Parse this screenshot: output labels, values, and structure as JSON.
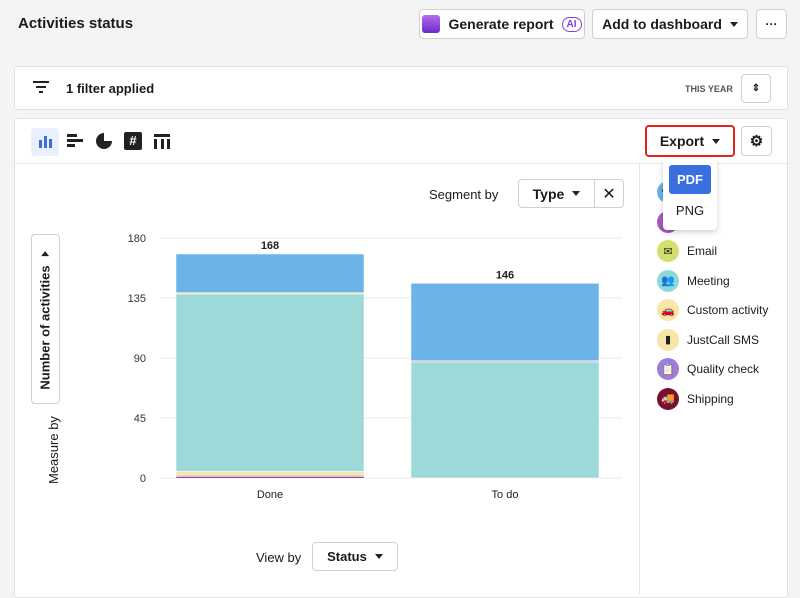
{
  "header": {
    "title": "Activities status",
    "generate_report": "Generate report",
    "ai_badge": "AI",
    "add_to_dashboard": "Add to dashboard",
    "more": "···"
  },
  "filter": {
    "label": "1 filter applied",
    "period": "THIS YEAR"
  },
  "toolbar": {
    "chart_types": [
      "bar-chart-icon",
      "horizontal-bar-icon",
      "pie-chart-icon",
      "number-icon",
      "table-icon"
    ],
    "active": "bar-chart-icon",
    "export": "Export",
    "export_menu": [
      "PDF",
      "PNG"
    ],
    "export_selected": "PDF"
  },
  "controls": {
    "segment_by_label": "Segment by",
    "segment_by_value": "Type",
    "measure_by_label": "Measure by",
    "measure_by_value": "Number of activities",
    "view_by_label": "View by",
    "view_by_value": "Status"
  },
  "colors": {
    "accent": "#3a6fe0",
    "highlight": "#e0261c"
  },
  "legend": [
    {
      "label": "",
      "color": "#6ab4e8"
    },
    {
      "label": "",
      "color": "#a65bbf"
    },
    {
      "label": "Email",
      "color": "#d4de6e"
    },
    {
      "label": "Meeting",
      "color": "#8ed8d8"
    },
    {
      "label": "Custom activity",
      "color": "#f8e6a6"
    },
    {
      "label": "JustCall SMS",
      "color": "#f8e6a6"
    },
    {
      "label": "Quality check",
      "color": "#9b7ee0"
    },
    {
      "label": "Shipping",
      "color": "#7a0f2e"
    }
  ],
  "chart_data": {
    "type": "bar",
    "stacked": true,
    "categories": [
      "Done",
      "To do"
    ],
    "totals": [
      168,
      146
    ],
    "yticks": [
      0,
      45,
      90,
      135,
      180
    ],
    "ylim": [
      0,
      180
    ],
    "grid": true,
    "legend_position": "right",
    "series": [
      {
        "color": "#7a0f2e",
        "values": [
          1,
          0
        ]
      },
      {
        "color": "#9b7ee0",
        "values": [
          1,
          0
        ]
      },
      {
        "color": "#f8e6a6",
        "values": [
          3,
          0
        ]
      },
      {
        "color": "#9ed9d9",
        "values": [
          133,
          87
        ]
      },
      {
        "color": "#f8e6a6",
        "values": [
          1,
          0
        ]
      },
      {
        "color": "#e8a8e0",
        "values": [
          0,
          1
        ]
      },
      {
        "color": "#6ab4e8",
        "values": [
          29,
          58
        ]
      }
    ]
  }
}
